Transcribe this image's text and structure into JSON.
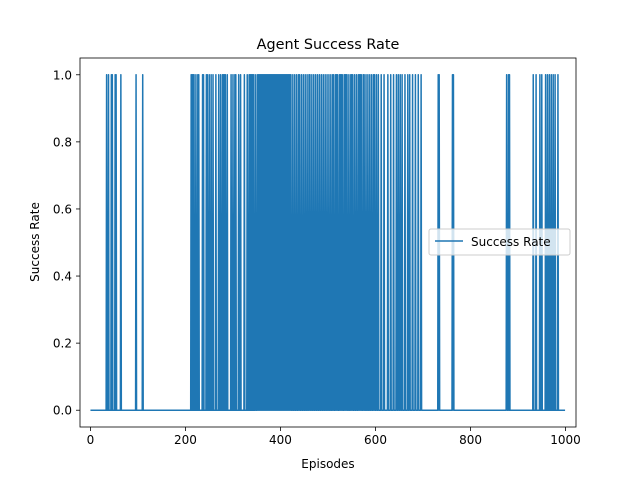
{
  "chart_data": {
    "type": "line",
    "title": "Agent Success Rate",
    "xlabel": "Episodes",
    "ylabel": "Success Rate",
    "xlim": [
      -22,
      1022
    ],
    "ylim": [
      -0.05,
      1.05
    ],
    "xticks": [
      "0",
      "200",
      "400",
      "600",
      "800",
      "1000"
    ],
    "xtick_values": [
      0,
      200,
      400,
      600,
      800,
      1000
    ],
    "yticks": [
      "0.0",
      "0.2",
      "0.4",
      "0.6",
      "0.8",
      "1.0"
    ],
    "ytick_values": [
      0.0,
      0.2,
      0.4,
      0.6,
      0.8,
      1.0
    ],
    "grid": false,
    "legend_position": "center-right",
    "series": [
      {
        "name": "Success Rate",
        "color": "#1f77b4",
        "x": [
          0,
          999
        ],
        "success_episodes": [
          34,
          38,
          44,
          46,
          52,
          54,
          64,
          96,
          110,
          212,
          214,
          216,
          218,
          222,
          226,
          228,
          236,
          238,
          244,
          246,
          250,
          254,
          258,
          264,
          270,
          274,
          278,
          280,
          282,
          284,
          288,
          296,
          300,
          304,
          306,
          312,
          316,
          324,
          330,
          334,
          336,
          338,
          340,
          342,
          344,
          348,
          352,
          354,
          356,
          358,
          360,
          362,
          364,
          366,
          368,
          370,
          372,
          374,
          376,
          378,
          380,
          382,
          384,
          386,
          388,
          390,
          392,
          394,
          396,
          398,
          400,
          402,
          404,
          406,
          408,
          410,
          412,
          414,
          416,
          418,
          420,
          422,
          426,
          430,
          434,
          438,
          440,
          444,
          448,
          452,
          456,
          460,
          462,
          466,
          470,
          474,
          478,
          482,
          486,
          490,
          494,
          498,
          502,
          506,
          510,
          512,
          516,
          518,
          520,
          524,
          526,
          528,
          530,
          534,
          536,
          538,
          540,
          544,
          548,
          550,
          552,
          556,
          560,
          564,
          566,
          568,
          570,
          574,
          576,
          580,
          584,
          588,
          592,
          596,
          598,
          602,
          606,
          612,
          618,
          626,
          632,
          638,
          644,
          648,
          652,
          656,
          662,
          668,
          672,
          678,
          684,
          690,
          696,
          732,
          734,
          762,
          764,
          876,
          880,
          882,
          932,
          938,
          946,
          950,
          958,
          962,
          966,
          970,
          974,
          978,
          984
        ]
      }
    ]
  }
}
